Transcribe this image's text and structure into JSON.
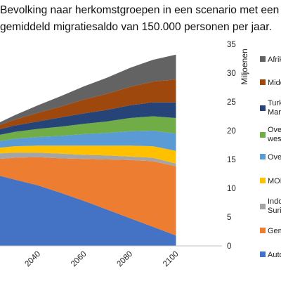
{
  "title_lines": [
    "Bevolking naar herkomstgroepen in een scenario met een",
    "gemiddeld migratiesaldo van 150.000 personen per jaar."
  ],
  "chart_data": {
    "type": "area",
    "stacked": true,
    "title": "Bevolking naar herkomstgroepen in een scenario met een gemiddeld migratiesaldo van 150.000 personen per jaar.",
    "ylabel": "Miljoenen",
    "y_axis_side": "right",
    "ylim": [
      0,
      35
    ],
    "y_ticks": [
      0,
      5,
      10,
      15,
      20,
      25,
      30,
      35
    ],
    "x_ticks": [
      2040,
      2060,
      2080,
      2100
    ],
    "x": [
      2020,
      2030,
      2040,
      2050,
      2060,
      2070,
      2080,
      2090,
      2100
    ],
    "legend_position": "right",
    "series": [
      {
        "name": "Auto",
        "color": "#4472C4",
        "values": [
          12.5,
          11.5,
          10.5,
          9.2,
          7.8,
          6.3,
          4.8,
          3.3,
          1.8
        ]
      },
      {
        "name": "Gem",
        "color": "#ED7D31",
        "values": [
          2.5,
          3.8,
          4.9,
          6.0,
          7.3,
          8.7,
          10.1,
          11.4,
          12.0
        ]
      },
      {
        "name": "Indo Surin",
        "color": "#A5A5A5",
        "values": [
          1.0,
          0.9,
          0.8,
          0.8,
          0.7,
          0.7,
          0.6,
          0.6,
          0.5
        ]
      },
      {
        "name": "MOE",
        "color": "#FFC000",
        "values": [
          0.9,
          1.1,
          1.2,
          1.4,
          1.6,
          1.7,
          1.9,
          2.0,
          2.2
        ]
      },
      {
        "name": "Over",
        "color": "#5B9BD5",
        "values": [
          1.1,
          1.3,
          1.5,
          1.7,
          2.0,
          2.2,
          2.5,
          2.7,
          3.0
        ]
      },
      {
        "name": "Over west",
        "color": "#70AD47",
        "values": [
          1.0,
          1.2,
          1.4,
          1.6,
          1.8,
          2.0,
          2.3,
          2.5,
          2.7
        ]
      },
      {
        "name": "Turki Marc",
        "color": "#264478",
        "values": [
          0.9,
          1.1,
          1.3,
          1.6,
          1.8,
          2.0,
          2.2,
          2.4,
          2.7
        ]
      },
      {
        "name": "Midc",
        "color": "#9E480E",
        "values": [
          0.6,
          1.0,
          1.5,
          1.9,
          2.4,
          2.8,
          3.2,
          3.6,
          4.0
        ]
      },
      {
        "name": "Afrik",
        "color": "#636363",
        "values": [
          0.3,
          0.8,
          1.3,
          1.8,
          2.3,
          2.8,
          3.3,
          3.8,
          4.3
        ]
      }
    ]
  }
}
